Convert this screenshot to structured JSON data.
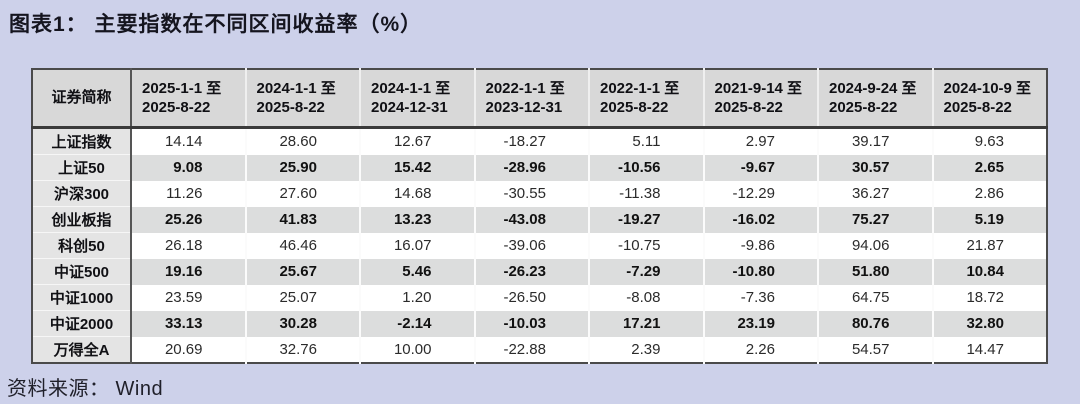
{
  "chart_data": {
    "type": "table",
    "title": "图表1： 主要指数在不同区间收益率（%）",
    "source": "资料来源： Wind",
    "corner_header": "证券简称",
    "columns": [
      {
        "line1": "2025-1-1 至",
        "line2": "2025-8-22"
      },
      {
        "line1": "2024-1-1 至",
        "line2": "2025-8-22"
      },
      {
        "line1": "2024-1-1 至",
        "line2": "2024-12-31"
      },
      {
        "line1": "2022-1-1 至",
        "line2": "2023-12-31"
      },
      {
        "line1": "2022-1-1 至",
        "line2": "2025-8-22"
      },
      {
        "line1": "2021-9-14 至",
        "line2": "2025-8-22"
      },
      {
        "line1": "2024-9-24 至",
        "line2": "2025-8-22"
      },
      {
        "line1": "2024-10-9 至",
        "line2": "2025-8-22"
      }
    ],
    "rows": [
      {
        "name": "上证指数",
        "values": [
          "14.14",
          "28.60",
          "12.67",
          "-18.27",
          "5.11",
          "2.97",
          "39.17",
          "9.63"
        ]
      },
      {
        "name": "上证50",
        "values": [
          "9.08",
          "25.90",
          "15.42",
          "-28.96",
          "-10.56",
          "-9.67",
          "30.57",
          "2.65"
        ]
      },
      {
        "name": "沪深300",
        "values": [
          "11.26",
          "27.60",
          "14.68",
          "-30.55",
          "-11.38",
          "-12.29",
          "36.27",
          "2.86"
        ]
      },
      {
        "name": "创业板指",
        "values": [
          "25.26",
          "41.83",
          "13.23",
          "-43.08",
          "-19.27",
          "-16.02",
          "75.27",
          "5.19"
        ]
      },
      {
        "name": "科创50",
        "values": [
          "26.18",
          "46.46",
          "16.07",
          "-39.06",
          "-10.75",
          "-9.86",
          "94.06",
          "21.87"
        ]
      },
      {
        "name": "中证500",
        "values": [
          "19.16",
          "25.67",
          "5.46",
          "-26.23",
          "-7.29",
          "-10.80",
          "51.80",
          "10.84"
        ]
      },
      {
        "name": "中证1000",
        "values": [
          "23.59",
          "25.07",
          "1.20",
          "-26.50",
          "-8.08",
          "-7.36",
          "64.75",
          "18.72"
        ]
      },
      {
        "name": "中证2000",
        "values": [
          "33.13",
          "30.28",
          "-2.14",
          "-10.03",
          "17.21",
          "23.19",
          "80.76",
          "32.80"
        ]
      },
      {
        "name": "万得全A",
        "values": [
          "20.69",
          "32.76",
          "10.00",
          "-22.88",
          "2.39",
          "2.26",
          "54.57",
          "14.47"
        ]
      }
    ],
    "layout": {
      "grid": "striped-rows",
      "stripe_pattern": "alternating starting white, bold text on gray stripes",
      "value_alignment": "right"
    },
    "colors": {
      "page_bg": "#cdd1ea",
      "header_bg": "#d8d8d8",
      "first_col_bg": "#e4e4e4",
      "stripe_row_bg": "#dcdddd",
      "white_row_bg": "#ffffff",
      "border_dark": "#4a4a4a",
      "title_text": "#15151f"
    }
  }
}
